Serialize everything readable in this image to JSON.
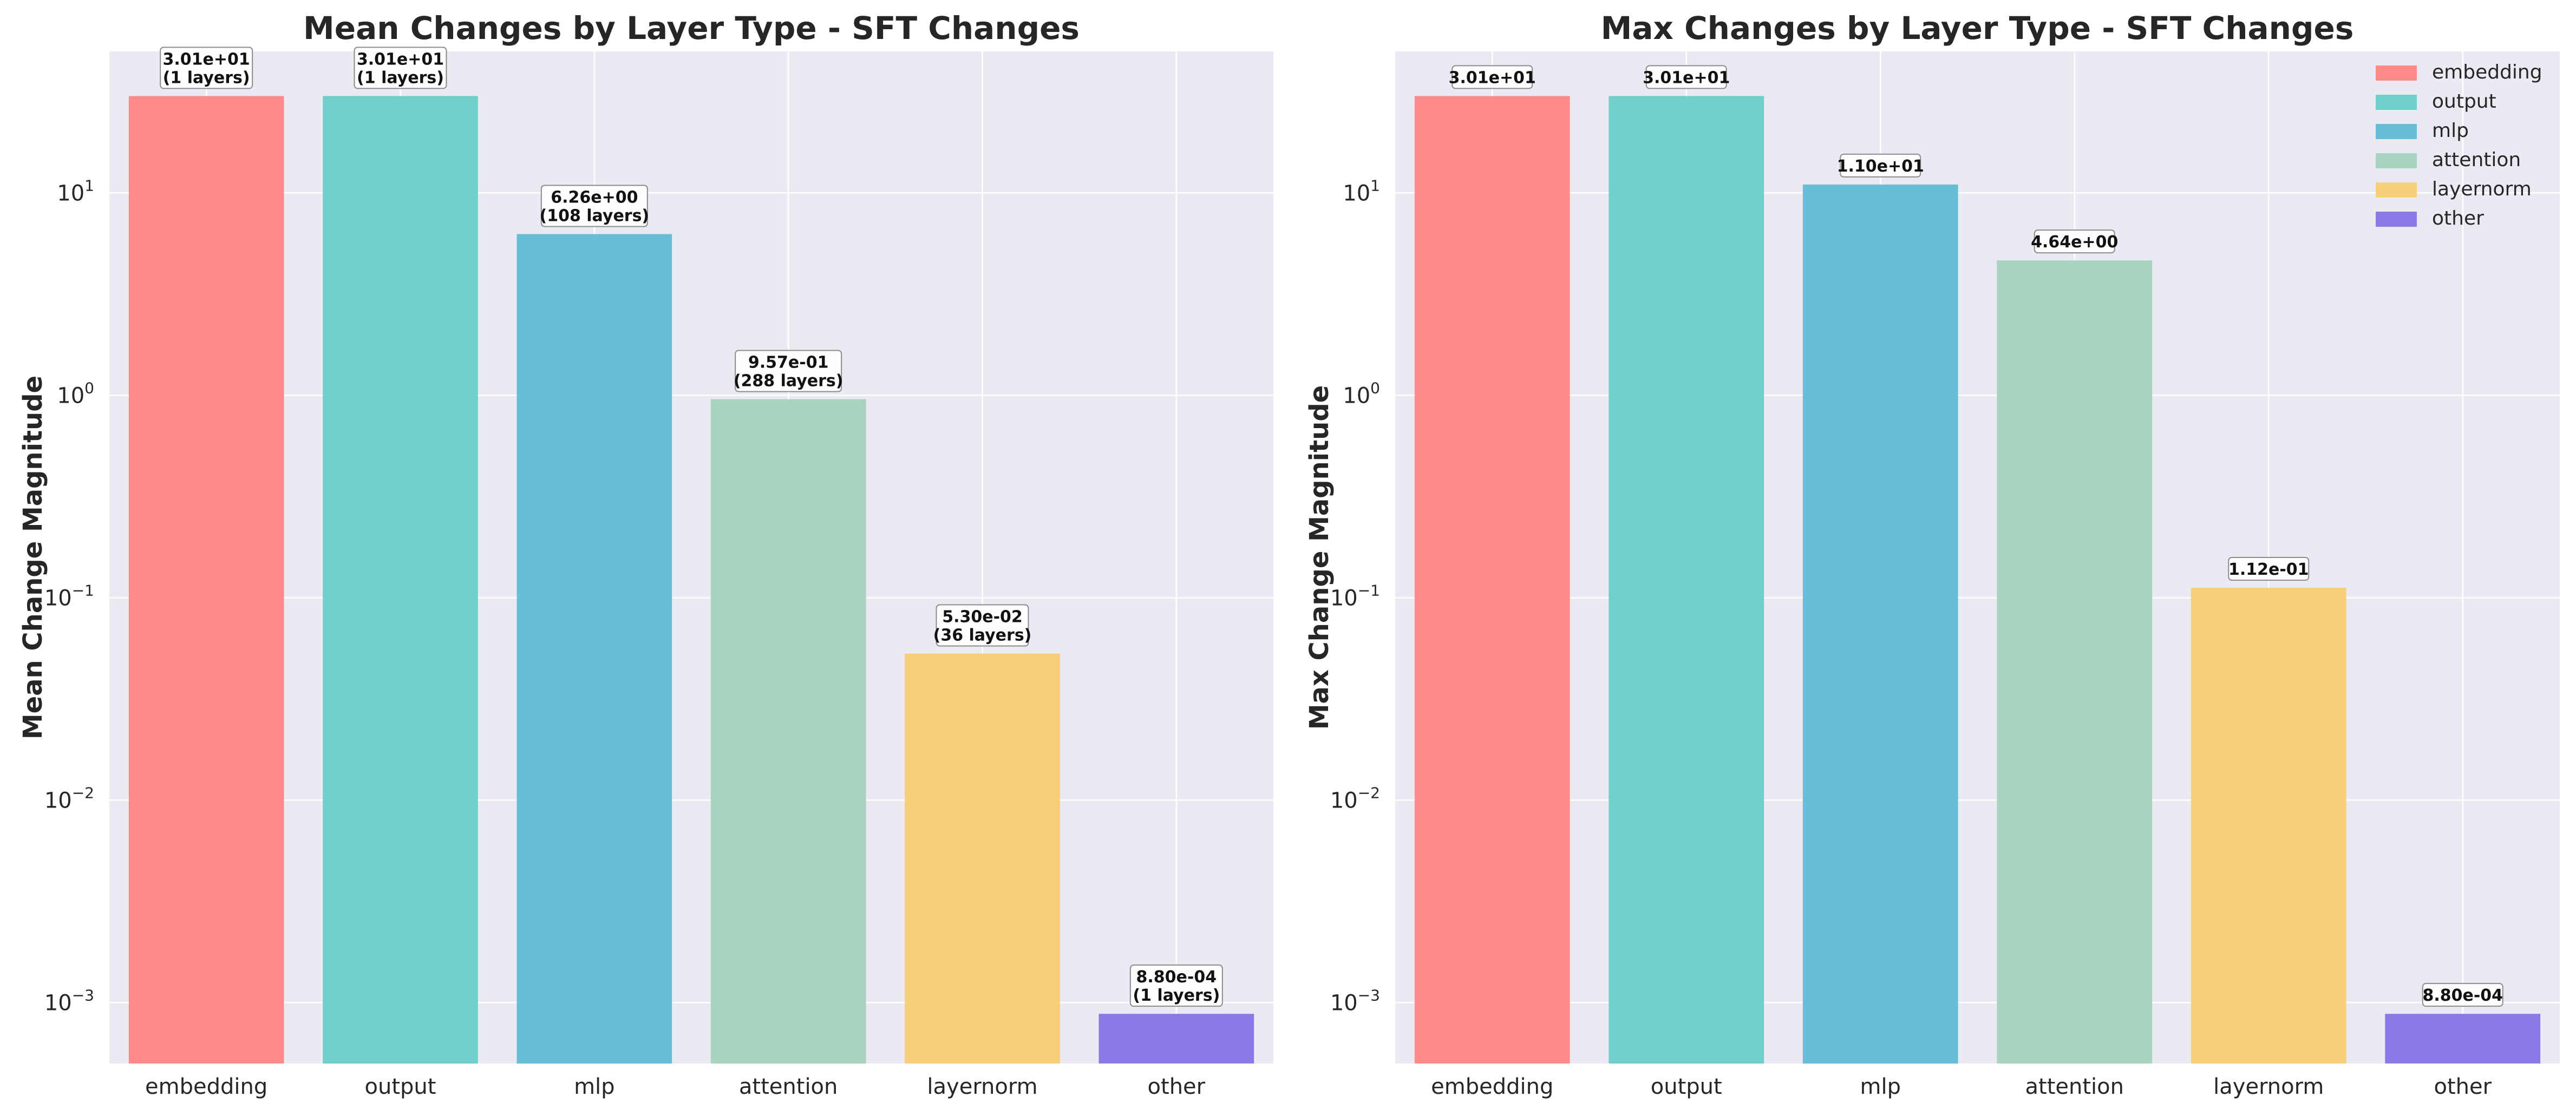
{
  "chart_data": [
    {
      "type": "bar",
      "title": "Mean Changes by Layer Type - SFT Changes",
      "xlabel": "",
      "ylabel": "Mean Change Magnitude",
      "yscale": "log",
      "ylim": [
        0.0005,
        50
      ],
      "yticks": [
        {
          "base": "10",
          "exp": "1",
          "value": 10
        },
        {
          "base": "10",
          "exp": "0",
          "value": 1
        },
        {
          "base": "10",
          "exp": "−1",
          "value": 0.1
        },
        {
          "base": "10",
          "exp": "−2",
          "value": 0.01
        },
        {
          "base": "10",
          "exp": "−3",
          "value": 0.001
        }
      ],
      "grid": true,
      "legend": false,
      "categories": [
        "embedding",
        "output",
        "mlp",
        "attention",
        "layernorm",
        "other"
      ],
      "values": [
        30.1,
        30.1,
        6.26,
        0.957,
        0.053,
        0.00088
      ],
      "value_labels": [
        "3.01e+01",
        "3.01e+01",
        "6.26e+00",
        "9.57e-01",
        "5.30e-02",
        "8.80e-04"
      ],
      "count_labels": [
        "(1 layers)",
        "(1 layers)",
        "(108 layers)",
        "(288 layers)",
        "(36 layers)",
        "(1 layers)"
      ],
      "colors": [
        "#ff8a8a",
        "#6fd0cb",
        "#67bed6",
        "#a7d3bf",
        "#f7cf78",
        "#8a79e6"
      ]
    },
    {
      "type": "bar",
      "title": "Max Changes by Layer Type - SFT Changes",
      "xlabel": "",
      "ylabel": "Max Change Magnitude",
      "yscale": "log",
      "ylim": [
        0.0005,
        50
      ],
      "yticks": [
        {
          "base": "10",
          "exp": "1",
          "value": 10
        },
        {
          "base": "10",
          "exp": "0",
          "value": 1
        },
        {
          "base": "10",
          "exp": "−1",
          "value": 0.1
        },
        {
          "base": "10",
          "exp": "−2",
          "value": 0.01
        },
        {
          "base": "10",
          "exp": "−3",
          "value": 0.001
        }
      ],
      "grid": true,
      "legend": "top-right",
      "categories": [
        "embedding",
        "output",
        "mlp",
        "attention",
        "layernorm",
        "other"
      ],
      "values": [
        30.1,
        30.1,
        11.0,
        4.64,
        0.112,
        0.00088
      ],
      "value_labels": [
        "3.01e+01",
        "3.01e+01",
        "1.10e+01",
        "4.64e+00",
        "1.12e-01",
        "8.80e-04"
      ],
      "colors": [
        "#ff8a8a",
        "#6fd0cb",
        "#67bed6",
        "#a7d3bf",
        "#f7cf78",
        "#8a79e6"
      ]
    }
  ]
}
